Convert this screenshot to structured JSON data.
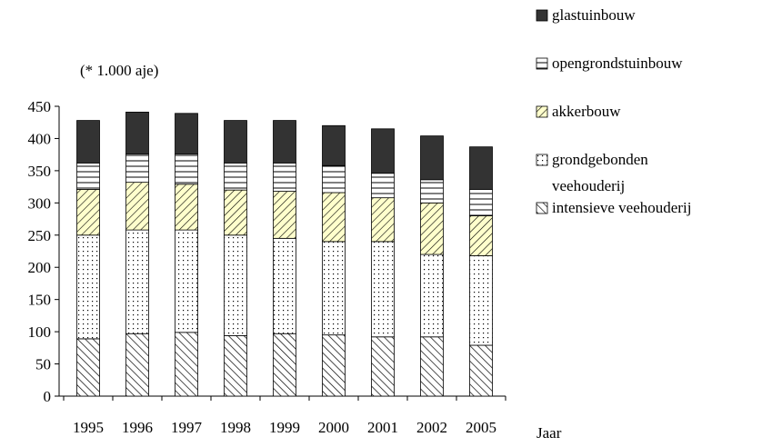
{
  "chart_data": {
    "type": "bar",
    "stacked": true,
    "unit_label": "(* 1.000 aje)",
    "xlabel": "Jaar",
    "ylabel": "",
    "ylim": [
      0,
      450
    ],
    "yticks": [
      0,
      50,
      100,
      150,
      200,
      250,
      300,
      350,
      400,
      450
    ],
    "categories": [
      "1995",
      "1996",
      "1997",
      "1998",
      "1999",
      "2000",
      "2001",
      "2002",
      "2005"
    ],
    "series": [
      {
        "name": "intensieve veehouderij",
        "pattern": "diagonal-hatch",
        "color": "#ffffff",
        "values": [
          89,
          97,
          99,
          94,
          97,
          95,
          92,
          92,
          79
        ]
      },
      {
        "name": "grondgebonden veehouderij",
        "pattern": "dots",
        "color": "#ffffff",
        "values": [
          161,
          161,
          159,
          156,
          148,
          145,
          148,
          128,
          139
        ]
      },
      {
        "name": "akkerbouw",
        "pattern": "diagonal-hatch",
        "color": "#ffffcc",
        "values": [
          71,
          74,
          71,
          70,
          73,
          76,
          68,
          80,
          62
        ]
      },
      {
        "name": "opengrondstuinbouw",
        "pattern": "horizontal-lines",
        "color": "#ffffff",
        "values": [
          41,
          44,
          47,
          42,
          44,
          42,
          38,
          36,
          41
        ]
      },
      {
        "name": "glastuinbouw",
        "pattern": "solid",
        "color": "#333333",
        "values": [
          66,
          65,
          63,
          66,
          66,
          62,
          69,
          68,
          66
        ]
      }
    ],
    "legend": {
      "position": "top-right",
      "order": [
        "glastuinbouw",
        "opengrondstuinbouw",
        "akkerbouw",
        "grondgebonden veehouderij",
        "intensieve veehouderij"
      ]
    },
    "grid": false
  }
}
